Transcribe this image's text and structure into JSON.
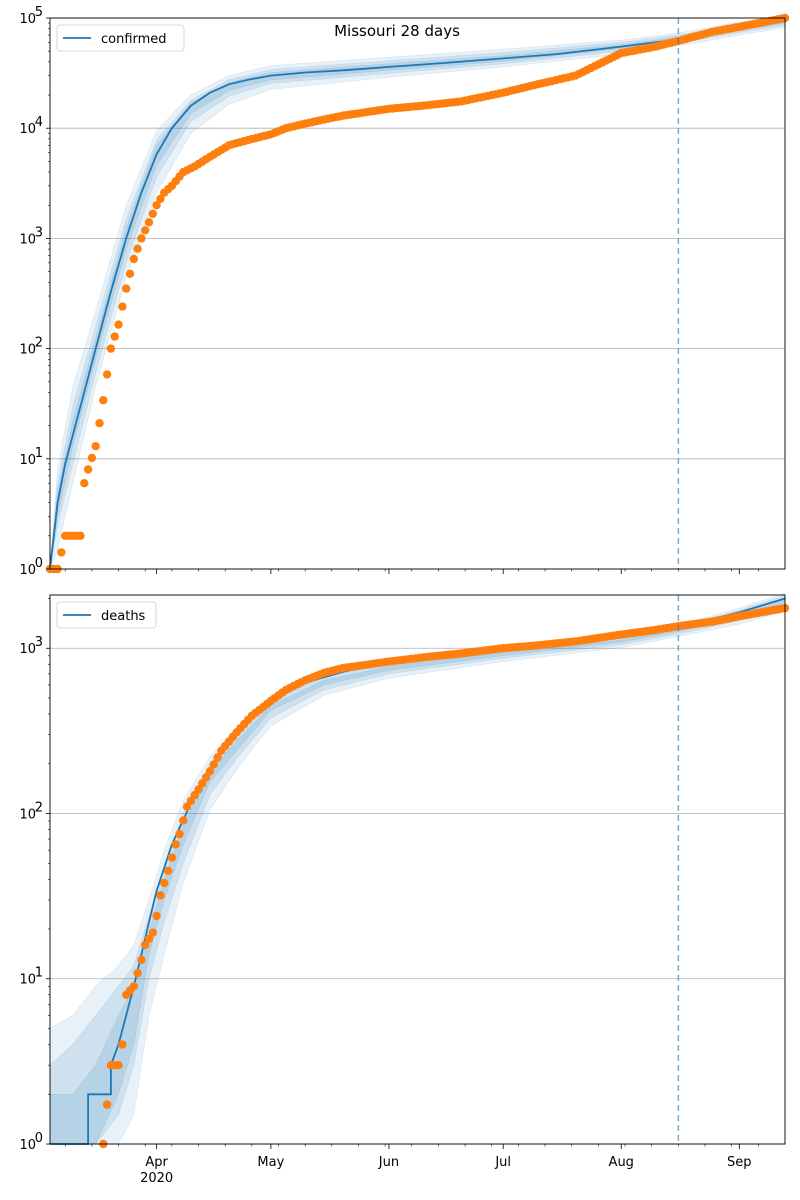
{
  "chart_data": [
    {
      "type": "line",
      "title": "Missouri 28 days",
      "yscale": "log",
      "ylim": [
        1,
        100000
      ],
      "xlim": [
        "2020-03-04",
        "2020-09-13"
      ],
      "x_ticks": [
        {
          "date": "2020-04-01",
          "label": "Apr",
          "sublabel": "2020"
        },
        {
          "date": "2020-05-01",
          "label": "May"
        },
        {
          "date": "2020-06-01",
          "label": "Jun"
        },
        {
          "date": "2020-07-01",
          "label": "Jul"
        },
        {
          "date": "2020-08-01",
          "label": "Aug"
        },
        {
          "date": "2020-09-01",
          "label": "Sep"
        }
      ],
      "y_ticks": [
        1,
        10,
        100,
        1000,
        10000,
        100000
      ],
      "y_tick_labels": [
        {
          "base": "10",
          "exp": "0"
        },
        {
          "base": "10",
          "exp": "1"
        },
        {
          "base": "10",
          "exp": "2"
        },
        {
          "base": "10",
          "exp": "3"
        },
        {
          "base": "10",
          "exp": "4"
        },
        {
          "base": "10",
          "exp": "5"
        }
      ],
      "grid": "y",
      "legend": {
        "placement": "top-left",
        "entries": [
          "confirmed"
        ]
      },
      "forecast_start": "2020-08-16",
      "series": [
        {
          "name": "confirmed",
          "kind": "model-median",
          "color": "#1f77b4",
          "x": [
            "2020-03-04",
            "2020-03-06",
            "2020-03-08",
            "2020-03-12",
            "2020-03-16",
            "2020-03-20",
            "2020-03-24",
            "2020-03-28",
            "2020-04-01",
            "2020-04-05",
            "2020-04-10",
            "2020-04-15",
            "2020-04-20",
            "2020-04-25",
            "2020-05-01",
            "2020-05-10",
            "2020-05-20",
            "2020-06-01",
            "2020-06-15",
            "2020-07-01",
            "2020-07-15",
            "2020-08-01",
            "2020-08-16",
            "2020-09-01",
            "2020-09-13"
          ],
          "y": [
            1,
            4,
            9,
            30,
            100,
            330,
            1000,
            2600,
            5800,
            10000,
            16000,
            21000,
            25000,
            27500,
            30000,
            32000,
            33500,
            36000,
            39000,
            43000,
            47000,
            55000,
            64000,
            80000,
            94000
          ]
        },
        {
          "name": "",
          "kind": "observed",
          "color": "#ff7f0e",
          "x": [
            "2020-03-04",
            "2020-03-06",
            "2020-03-08",
            "2020-03-12",
            "2020-03-13",
            "2020-03-14",
            "2020-03-16",
            "2020-03-18",
            "2020-03-20",
            "2020-03-22",
            "2020-03-24",
            "2020-03-26",
            "2020-03-28",
            "2020-03-30",
            "2020-04-01",
            "2020-04-03",
            "2020-04-05",
            "2020-04-08",
            "2020-04-11",
            "2020-04-15",
            "2020-04-20",
            "2020-04-25",
            "2020-05-01",
            "2020-05-05",
            "2020-05-10",
            "2020-05-15",
            "2020-05-20",
            "2020-06-01",
            "2020-06-10",
            "2020-06-20",
            "2020-07-01",
            "2020-07-10",
            "2020-07-20",
            "2020-08-01",
            "2020-08-10",
            "2020-08-16",
            "2020-08-25",
            "2020-09-01",
            "2020-09-13"
          ],
          "y": [
            1,
            1,
            2,
            2,
            6,
            8,
            13,
            34,
            100,
            165,
            350,
            650,
            1000,
            1400,
            2000,
            2600,
            3000,
            4000,
            4500,
            5500,
            7000,
            7800,
            8800,
            10000,
            11000,
            12000,
            13000,
            15000,
            16000,
            17500,
            21000,
            25000,
            30000,
            48000,
            55000,
            62000,
            75000,
            83000,
            100000
          ]
        }
      ],
      "bands": [
        {
          "x": [
            "2020-03-04",
            "2020-03-06",
            "2020-03-10",
            "2020-03-16",
            "2020-03-24",
            "2020-04-01",
            "2020-04-10",
            "2020-04-20",
            "2020-05-01",
            "2020-06-01",
            "2020-07-01",
            "2020-08-01",
            "2020-08-16",
            "2020-09-01",
            "2020-09-13"
          ],
          "lo": [
            1,
            1.5,
            6,
            45,
            450,
            2600,
            9000,
            16500,
            22500,
            29000,
            36000,
            47000,
            56000,
            70000,
            82000
          ],
          "hi": [
            1,
            8,
            45,
            220,
            2000,
            9500,
            20000,
            30000,
            37000,
            44000,
            52000,
            63000,
            73000,
            92000,
            106000
          ]
        },
        {
          "x": [
            "2020-03-04",
            "2020-03-06",
            "2020-03-10",
            "2020-03-16",
            "2020-03-24",
            "2020-04-01",
            "2020-04-10",
            "2020-04-20",
            "2020-05-01",
            "2020-06-01",
            "2020-07-01",
            "2020-08-01",
            "2020-08-16",
            "2020-09-01",
            "2020-09-13"
          ],
          "lo": [
            1,
            2.5,
            9,
            60,
            600,
            3600,
            11500,
            19500,
            25500,
            31500,
            38500,
            50000,
            59000,
            74000,
            86000
          ],
          "hi": [
            1,
            6,
            30,
            160,
            1500,
            7800,
            18000,
            27500,
            34000,
            41000,
            48500,
            60000,
            70000,
            88000,
            102000
          ]
        },
        {
          "x": [
            "2020-03-04",
            "2020-03-06",
            "2020-03-10",
            "2020-03-16",
            "2020-03-24",
            "2020-04-01",
            "2020-04-10",
            "2020-04-20",
            "2020-05-01",
            "2020-06-01",
            "2020-07-01",
            "2020-08-01",
            "2020-08-16",
            "2020-09-01",
            "2020-09-13"
          ],
          "lo": [
            1,
            3,
            13,
            80,
            800,
            4600,
            13500,
            22000,
            27500,
            33500,
            40500,
            52500,
            61500,
            77000,
            90000
          ],
          "hi": [
            1,
            5,
            22,
            125,
            1250,
            7000,
            17000,
            26000,
            32000,
            38500,
            45500,
            57500,
            67000,
            84000,
            98000
          ]
        }
      ]
    },
    {
      "type": "line",
      "title": "",
      "yscale": "log",
      "ylim": [
        1,
        2100
      ],
      "xlim": [
        "2020-03-04",
        "2020-09-13"
      ],
      "x_ticks": [
        {
          "date": "2020-04-01",
          "label": "Apr",
          "sublabel": "2020"
        },
        {
          "date": "2020-05-01",
          "label": "May"
        },
        {
          "date": "2020-06-01",
          "label": "Jun"
        },
        {
          "date": "2020-07-01",
          "label": "Jul"
        },
        {
          "date": "2020-08-01",
          "label": "Aug"
        },
        {
          "date": "2020-09-01",
          "label": "Sep"
        }
      ],
      "y_ticks": [
        1,
        10,
        100,
        1000
      ],
      "y_tick_labels": [
        {
          "base": "10",
          "exp": "0"
        },
        {
          "base": "10",
          "exp": "1"
        },
        {
          "base": "10",
          "exp": "2"
        },
        {
          "base": "10",
          "exp": "3"
        }
      ],
      "grid": "y",
      "legend": {
        "placement": "top-left",
        "entries": [
          "deaths"
        ]
      },
      "forecast_start": "2020-08-16",
      "series": [
        {
          "name": "deaths",
          "kind": "model-median",
          "color": "#1f77b4",
          "x": [
            "2020-03-04",
            "2020-03-14",
            "2020-03-14",
            "2020-03-20",
            "2020-03-20",
            "2020-03-22",
            "2020-03-24",
            "2020-03-26",
            "2020-03-28",
            "2020-03-30",
            "2020-04-01",
            "2020-04-05",
            "2020-04-10",
            "2020-04-15",
            "2020-04-20",
            "2020-04-25",
            "2020-05-01",
            "2020-05-10",
            "2020-05-20",
            "2020-06-01",
            "2020-06-15",
            "2020-07-01",
            "2020-07-15",
            "2020-08-01",
            "2020-08-16",
            "2020-09-01",
            "2020-09-13"
          ],
          "y": [
            1,
            1,
            2,
            2,
            3,
            4,
            6,
            9,
            14,
            22,
            34,
            65,
            115,
            185,
            270,
            380,
            500,
            620,
            720,
            820,
            900,
            980,
            1060,
            1180,
            1330,
            1650,
            2000
          ]
        },
        {
          "name": "",
          "kind": "observed",
          "color": "#ff7f0e",
          "x": [
            "2020-03-18",
            "2020-03-20",
            "2020-03-22",
            "2020-03-23",
            "2020-03-24",
            "2020-03-26",
            "2020-03-28",
            "2020-03-29",
            "2020-03-31",
            "2020-04-01",
            "2020-04-02",
            "2020-04-04",
            "2020-04-06",
            "2020-04-07",
            "2020-04-09",
            "2020-04-12",
            "2020-04-15",
            "2020-04-18",
            "2020-04-22",
            "2020-04-26",
            "2020-05-01",
            "2020-05-05",
            "2020-05-10",
            "2020-05-15",
            "2020-05-20",
            "2020-06-01",
            "2020-06-10",
            "2020-06-20",
            "2020-07-01",
            "2020-07-10",
            "2020-07-20",
            "2020-08-01",
            "2020-08-10",
            "2020-08-16",
            "2020-08-25",
            "2020-09-01",
            "2020-09-13"
          ],
          "y": [
            1,
            3,
            3,
            4,
            8,
            9,
            13,
            16,
            19,
            24,
            32,
            45,
            65,
            75,
            110,
            140,
            180,
            240,
            310,
            390,
            480,
            560,
            640,
            710,
            760,
            830,
            880,
            930,
            1000,
            1040,
            1100,
            1210,
            1290,
            1360,
            1450,
            1560,
            1750
          ]
        }
      ],
      "bands": [
        {
          "x": [
            "2020-03-04",
            "2020-03-10",
            "2020-03-16",
            "2020-03-22",
            "2020-03-26",
            "2020-03-30",
            "2020-04-03",
            "2020-04-08",
            "2020-04-15",
            "2020-04-22",
            "2020-05-01",
            "2020-05-15",
            "2020-06-01",
            "2020-07-01",
            "2020-08-01",
            "2020-08-16",
            "2020-09-01",
            "2020-09-13"
          ],
          "lo": [
            1,
            1,
            1,
            1,
            1.5,
            6,
            14,
            38,
            105,
            185,
            340,
            520,
            660,
            830,
            1010,
            1180,
            1400,
            1680
          ],
          "hi": [
            5,
            6,
            9,
            12,
            16,
            30,
            60,
            120,
            220,
            330,
            520,
            700,
            830,
            1000,
            1180,
            1380,
            1750,
            2150
          ]
        },
        {
          "x": [
            "2020-03-04",
            "2020-03-10",
            "2020-03-16",
            "2020-03-22",
            "2020-03-26",
            "2020-03-30",
            "2020-04-03",
            "2020-04-08",
            "2020-04-15",
            "2020-04-22",
            "2020-05-01",
            "2020-05-15",
            "2020-06-01",
            "2020-07-01",
            "2020-08-01",
            "2020-08-16",
            "2020-09-01",
            "2020-09-13"
          ],
          "lo": [
            1,
            1,
            1,
            1.5,
            3,
            10,
            22,
            50,
            130,
            215,
            380,
            560,
            700,
            870,
            1050,
            1220,
            1470,
            1760
          ],
          "hi": [
            3,
            4,
            6,
            9,
            12,
            24,
            48,
            100,
            200,
            300,
            480,
            670,
            800,
            970,
            1150,
            1350,
            1700,
            2080
          ]
        },
        {
          "x": [
            "2020-03-04",
            "2020-03-10",
            "2020-03-16",
            "2020-03-22",
            "2020-03-26",
            "2020-03-30",
            "2020-04-03",
            "2020-04-08",
            "2020-04-15",
            "2020-04-22",
            "2020-05-01",
            "2020-05-15",
            "2020-06-01",
            "2020-07-01",
            "2020-08-01",
            "2020-08-16",
            "2020-09-01",
            "2020-09-13"
          ],
          "lo": [
            1,
            1,
            1,
            2,
            4,
            14,
            30,
            65,
            155,
            240,
            420,
            600,
            735,
            900,
            1090,
            1260,
            1540,
            1840
          ],
          "hi": [
            2,
            2,
            3,
            6,
            9,
            19,
            40,
            85,
            180,
            275,
            450,
            640,
            775,
            945,
            1120,
            1310,
            1650,
            2020
          ]
        }
      ]
    }
  ]
}
